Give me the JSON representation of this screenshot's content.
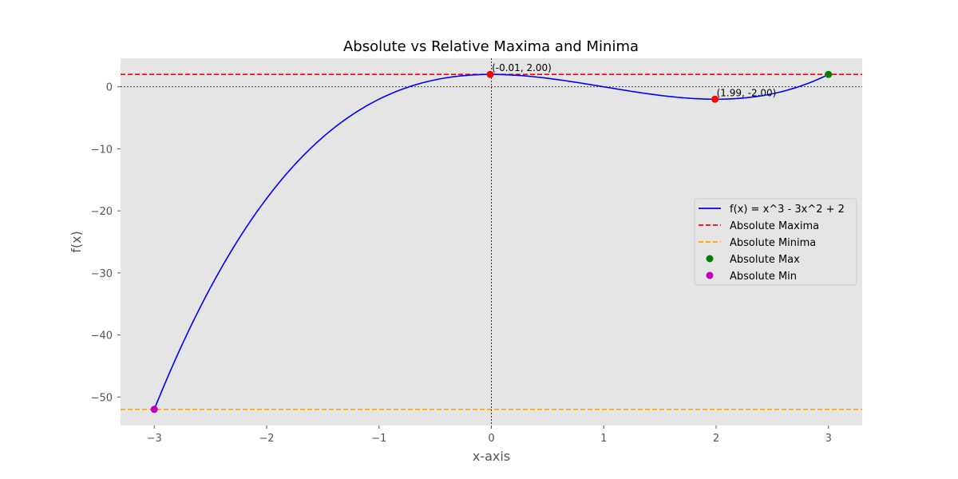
{
  "chart_data": {
    "type": "line",
    "title": "Absolute vs Relative Maxima and Minima",
    "xlabel": "x-axis",
    "ylabel": "f(x)",
    "xlim": [
      -3.3,
      3.3
    ],
    "ylim": [
      -54.6,
      4.6
    ],
    "x_ticks": [
      -3,
      -2,
      -1,
      0,
      1,
      2,
      3
    ],
    "y_ticks": [
      0,
      -10,
      -20,
      -30,
      -40,
      -50
    ],
    "x_tick_labels": [
      "−3",
      "−2",
      "−1",
      "0",
      "1",
      "2",
      "3"
    ],
    "y_tick_labels": [
      "0",
      "−10",
      "−20",
      "−30",
      "−40",
      "−50"
    ],
    "grid": false,
    "background": "#e5e5e5",
    "legend_position": "center-right",
    "function": {
      "name": "f(x) = x^3 - 3x^2 + 2",
      "x_range": [
        -3,
        3
      ],
      "color": "#0000ff"
    },
    "reference_lines": [
      {
        "name": "Absolute Maxima",
        "y": 2,
        "color": "#ff0000",
        "style": "dashed"
      },
      {
        "name": "Absolute Minima",
        "y": -52,
        "color": "#ffa500",
        "style": "dashed"
      },
      {
        "name": "",
        "y": 0,
        "color": "#000000",
        "style": "dotted",
        "orientation": "horizontal"
      },
      {
        "name": "",
        "x": 0,
        "color": "#000000",
        "style": "dotted",
        "orientation": "vertical"
      }
    ],
    "points": [
      {
        "name": "Absolute Max",
        "x": 3,
        "y": 2,
        "color": "#008000",
        "in_legend": true
      },
      {
        "name": "Absolute Min",
        "x": -3,
        "y": -52,
        "color": "#bf00bf",
        "in_legend": true
      },
      {
        "name": "",
        "x": -0.01,
        "y": 2.0,
        "color": "#ff0000",
        "in_legend": false,
        "label": "(-0.01, 2.00)"
      },
      {
        "name": "",
        "x": 1.99,
        "y": -2.0,
        "color": "#ff0000",
        "in_legend": false,
        "label": "(1.99, -2.00)"
      }
    ],
    "legend": [
      {
        "label": "f(x) = x^3 - 3x^2 + 2",
        "kind": "line",
        "color": "#0000ff"
      },
      {
        "label": "Absolute Maxima",
        "kind": "dashed",
        "color": "#ff0000"
      },
      {
        "label": "Absolute Minima",
        "kind": "dashed",
        "color": "#ffa500"
      },
      {
        "label": "Absolute Max",
        "kind": "marker",
        "color": "#008000"
      },
      {
        "label": "Absolute Min",
        "kind": "marker",
        "color": "#bf00bf"
      }
    ]
  }
}
